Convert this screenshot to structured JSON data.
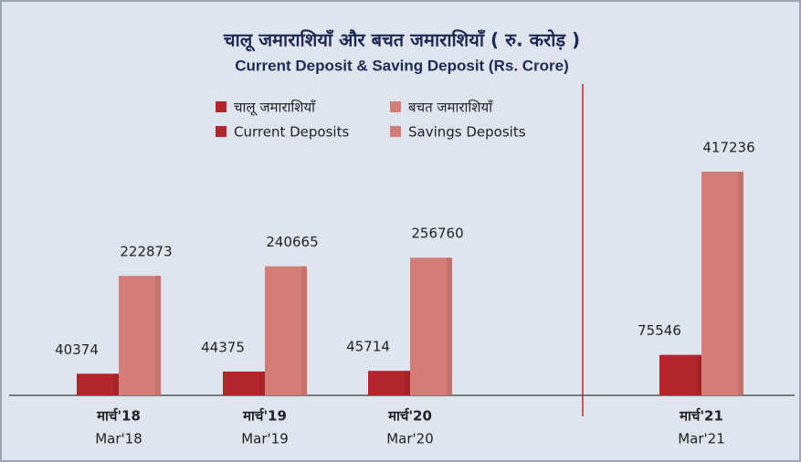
{
  "chart_data": {
    "type": "bar",
    "title": "चालू जमाराशियाँ और बचत जमाराशियाँ ( रु. करोड़ )",
    "subtitle": "Current Deposit & Saving Deposit (Rs. Crore)",
    "categories": [
      "Mar'18",
      "Mar'19",
      "Mar'20",
      "Mar'21"
    ],
    "categories_hindi": [
      "मार्च'18",
      "मार्च'19",
      "मार्च'20",
      "मार्च'21"
    ],
    "series": [
      {
        "name": "Current Deposits",
        "name_hindi": "चालू जमाराशियाँ",
        "color": "#b3262a",
        "values": [
          40374,
          44375,
          45714,
          75546
        ]
      },
      {
        "name": "Savings Deposits",
        "name_hindi": "बचत जमाराशियाँ",
        "color": "#d47c78",
        "values": [
          222873,
          240665,
          256760,
          417236
        ]
      }
    ]
  }
}
